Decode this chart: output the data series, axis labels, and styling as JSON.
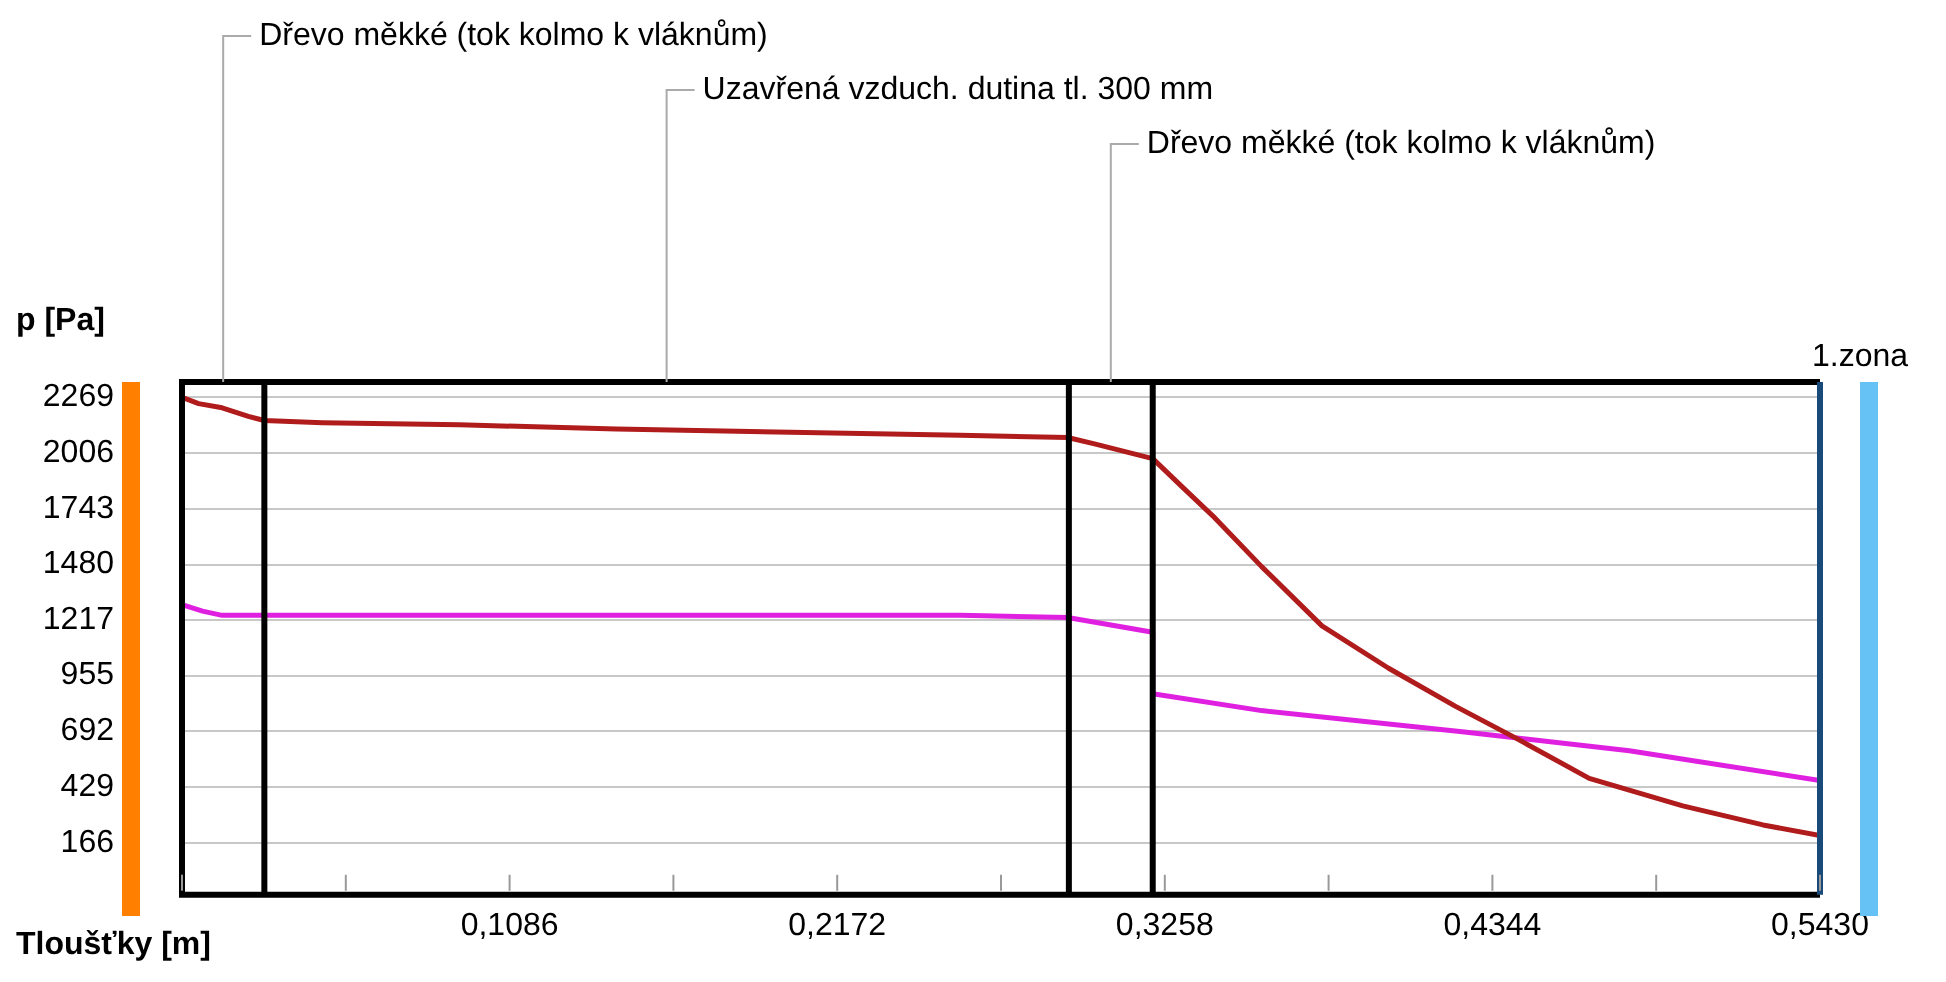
{
  "chart_data": {
    "type": "line",
    "ylabel": "p [Pa]",
    "xlabel": "Tloušťky [m]",
    "xlim": [
      0,
      0.543
    ],
    "ylim": [
      -80,
      2342
    ],
    "xticks": [
      {
        "value": 0,
        "label": null
      },
      {
        "value": 0.0543,
        "label": null
      },
      {
        "value": 0.1086,
        "label": "0,1086"
      },
      {
        "value": 0.1629,
        "label": null
      },
      {
        "value": 0.2172,
        "label": "0,2172"
      },
      {
        "value": 0.2715,
        "label": null
      },
      {
        "value": 0.3258,
        "label": "0,3258"
      },
      {
        "value": 0.3801,
        "label": null
      },
      {
        "value": 0.4344,
        "label": "0,4344"
      },
      {
        "value": 0.4887,
        "label": null
      },
      {
        "value": 0.543,
        "label": "0,5430"
      }
    ],
    "yticks": [
      166,
      429,
      692,
      955,
      1217,
      1480,
      1743,
      2006,
      2269
    ],
    "grid": "y",
    "legend": false,
    "marker": "none",
    "line_style": "solid",
    "series": [
      {
        "color": "#b01c1c",
        "x": [
          0,
          0.0055,
          0.0133,
          0.022,
          0.0273,
          0.0465,
          0.092,
          0.144,
          0.258,
          0.2936,
          0.3025,
          0.3218,
          0.3313,
          0.3424,
          0.3579,
          0.3779,
          0.4,
          0.4222,
          0.4422,
          0.4665,
          0.4975,
          0.5241,
          0.543
        ],
        "values": [
          2270,
          2240,
          2220,
          2180,
          2160,
          2150,
          2140,
          2120,
          2090,
          2080,
          2050,
          1980,
          1850,
          1700,
          1470,
          1190,
          990,
          810,
          660,
          470,
          340,
          250,
          200
        ]
      },
      {
        "color": "#e020e0",
        "x": [
          0,
          0.0068,
          0.0133,
          0.0273,
          0.258,
          0.2936,
          0.3218,
          0.3218,
          0.3579,
          0.4244,
          0.4798,
          0.543
        ],
        "values": [
          1290,
          1260,
          1240,
          1240,
          1240,
          1230,
          1160,
          870,
          790,
          690,
          600,
          460
        ]
      }
    ],
    "ref_lines": [
      {
        "axis": "x",
        "value": 0.0273,
        "color": "#000000"
      },
      {
        "axis": "x",
        "value": 0.294,
        "color": "#000000"
      },
      {
        "axis": "x",
        "value": 0.3218,
        "color": "#000000"
      },
      {
        "axis": "x",
        "value": 0.543,
        "color": "#1a4a7a"
      }
    ],
    "annotations": [
      "Dřevo měkké (tok kolmo k vláknům)",
      "Uzavřená vzduch. dutina tl. 300 mm",
      "Dřevo měkké (tok kolmo k vláknům)",
      "1.zona"
    ]
  }
}
